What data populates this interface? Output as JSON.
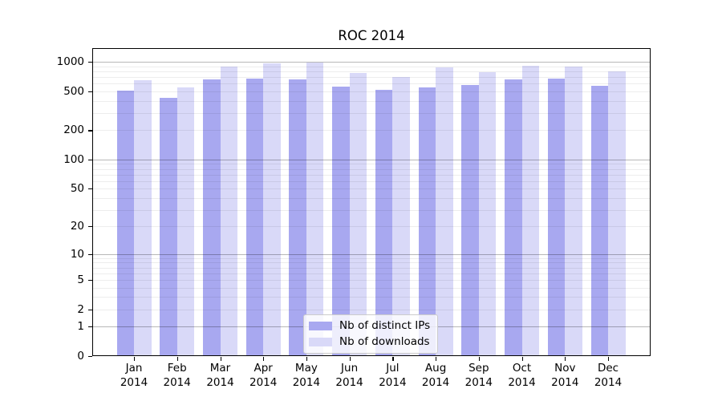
{
  "chart_data": {
    "type": "bar",
    "title": "ROC 2014",
    "year": "2014",
    "months": [
      "Jan",
      "Feb",
      "Mar",
      "Apr",
      "May",
      "Jun",
      "Jul",
      "Aug",
      "Sep",
      "Oct",
      "Nov",
      "Dec"
    ],
    "categories": [
      "Jan 2014",
      "Feb 2014",
      "Mar 2014",
      "Apr 2014",
      "May 2014",
      "Jun 2014",
      "Jul 2014",
      "Aug 2014",
      "Sep 2014",
      "Oct 2014",
      "Nov 2014",
      "Dec 2014"
    ],
    "series": [
      {
        "name": "Nb of distinct IPs",
        "color": "#a8a8f0",
        "values": [
          505,
          430,
          660,
          675,
          660,
          560,
          520,
          550,
          580,
          665,
          675,
          570
        ]
      },
      {
        "name": "Nb of downloads",
        "color": "#d9d9f8",
        "values": [
          650,
          550,
          890,
          960,
          990,
          770,
          700,
          880,
          785,
          915,
          895,
          795
        ]
      }
    ],
    "xlabel": "",
    "ylabel": "",
    "yscale": "log1p",
    "ylim": [
      0,
      1380
    ],
    "yticks": [
      0,
      1,
      2,
      5,
      10,
      20,
      50,
      100,
      200,
      500,
      1000
    ],
    "grid_major_lines": [
      1,
      10,
      100,
      1000
    ],
    "grid": "on",
    "legend_position": "lower center"
  }
}
